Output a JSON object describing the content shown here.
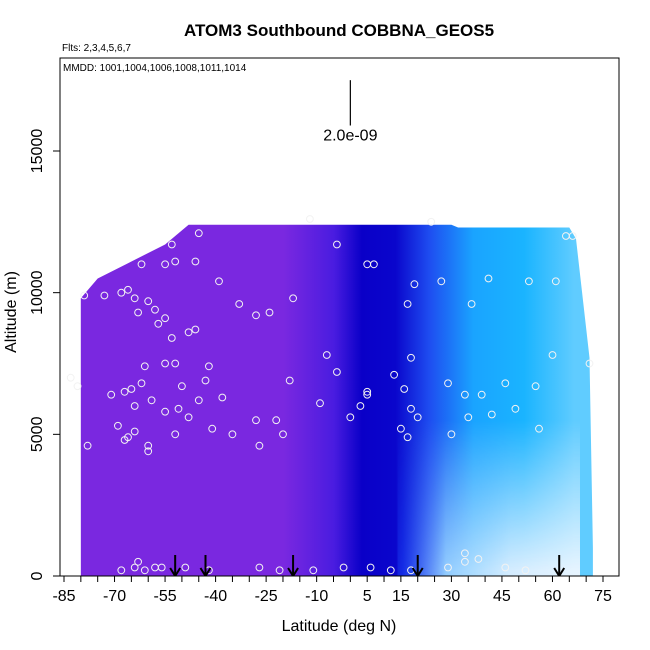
{
  "chart_data": {
    "type": "heatmap",
    "title": "ATOM3 Southbound COBBNA_GEOS5",
    "flights_label": "Flts: 2,3,4,5,6,7",
    "dates_label": "MMDD: 1001,1004,1006,1008,1011,1014",
    "xlabel": "Latitude (deg N)",
    "ylabel": "Altitude (m)",
    "xlim": [
      -85,
      85
    ],
    "ylim": [
      0,
      17500
    ],
    "x_ticks": [
      -85,
      -70,
      -55,
      -40,
      -25,
      -10,
      5,
      15,
      30,
      45,
      60,
      75
    ],
    "y_ticks": [
      0,
      5000,
      10000,
      15000
    ],
    "scale_bar_label": "2.0e-09",
    "scale_bar_x": 0,
    "scale_bar_y_range": [
      15900,
      17500
    ],
    "arrow_latitudes": [
      -52,
      -43,
      -17,
      20,
      62
    ],
    "colors": {
      "violet": "#7a28e0",
      "navy": "#0a00c8",
      "blue": "#1e4cf0",
      "sky": "#1ab4ff",
      "pale": "#d4ecff",
      "marker": "#f2f2f2"
    },
    "altitude_ceiling": [
      {
        "lat": -80,
        "alt": 9800
      },
      {
        "lat": -75,
        "alt": 10500
      },
      {
        "lat": -65,
        "alt": 11100
      },
      {
        "lat": -60,
        "alt": 11400
      },
      {
        "lat": -55,
        "alt": 11700
      },
      {
        "lat": -48,
        "alt": 12400
      },
      {
        "lat": 30,
        "alt": 12400
      },
      {
        "lat": 32,
        "alt": 12300
      },
      {
        "lat": 65,
        "alt": 12300
      },
      {
        "lat": 67,
        "alt": 11900
      },
      {
        "lat": 71,
        "alt": 7700
      },
      {
        "lat": 72,
        "alt": 1000
      }
    ],
    "sample_points": [
      {
        "lat": -79,
        "alt": 9900
      },
      {
        "lat": -73,
        "alt": 9900
      },
      {
        "lat": -68,
        "alt": 10000
      },
      {
        "lat": -66,
        "alt": 10100
      },
      {
        "lat": -64,
        "alt": 9800
      },
      {
        "lat": -60,
        "alt": 9700
      },
      {
        "lat": -58,
        "alt": 9400
      },
      {
        "lat": -55,
        "alt": 9100
      },
      {
        "lat": -63,
        "alt": 9300
      },
      {
        "lat": -57,
        "alt": 8900
      },
      {
        "lat": -53,
        "alt": 8400
      },
      {
        "lat": -48,
        "alt": 8600
      },
      {
        "lat": -46,
        "alt": 8700
      },
      {
        "lat": -62,
        "alt": 11000
      },
      {
        "lat": -55,
        "alt": 11000
      },
      {
        "lat": -52,
        "alt": 11100
      },
      {
        "lat": -46,
        "alt": 11100
      },
      {
        "lat": -53,
        "alt": 11700
      },
      {
        "lat": -45,
        "alt": 12100
      },
      {
        "lat": -39,
        "alt": 10400
      },
      {
        "lat": -33,
        "alt": 9600
      },
      {
        "lat": -28,
        "alt": 9200
      },
      {
        "lat": -24,
        "alt": 9300
      },
      {
        "lat": -17,
        "alt": 9800
      },
      {
        "lat": -4,
        "alt": 11700
      },
      {
        "lat": 5,
        "alt": 11000
      },
      {
        "lat": 7,
        "alt": 11000
      },
      {
        "lat": 17,
        "alt": 9600
      },
      {
        "lat": 19,
        "alt": 10300
      },
      {
        "lat": 27,
        "alt": 10400
      },
      {
        "lat": 36,
        "alt": 9600
      },
      {
        "lat": 41,
        "alt": 10500
      },
      {
        "lat": 53,
        "alt": 10400
      },
      {
        "lat": 61,
        "alt": 10400
      },
      {
        "lat": 64,
        "alt": 12000
      },
      {
        "lat": 66,
        "alt": 12000
      },
      {
        "lat": 24,
        "alt": 12500
      },
      {
        "lat": -12,
        "alt": 12600
      },
      {
        "lat": -83,
        "alt": 7000
      },
      {
        "lat": -81,
        "alt": 6700
      },
      {
        "lat": -78,
        "alt": 4600
      },
      {
        "lat": -71,
        "alt": 6400
      },
      {
        "lat": -67,
        "alt": 6500
      },
      {
        "lat": -65,
        "alt": 6600
      },
      {
        "lat": -61,
        "alt": 7400
      },
      {
        "lat": -59,
        "alt": 6200
      },
      {
        "lat": -55,
        "alt": 7500
      },
      {
        "lat": -52,
        "alt": 7500
      },
      {
        "lat": -62,
        "alt": 6800
      },
      {
        "lat": -64,
        "alt": 6000
      },
      {
        "lat": -50,
        "alt": 6700
      },
      {
        "lat": -45,
        "alt": 6200
      },
      {
        "lat": -42,
        "alt": 7400
      },
      {
        "lat": -43,
        "alt": 6900
      },
      {
        "lat": -38,
        "alt": 6300
      },
      {
        "lat": -69,
        "alt": 5300
      },
      {
        "lat": -66,
        "alt": 4900
      },
      {
        "lat": -67,
        "alt": 4800
      },
      {
        "lat": -64,
        "alt": 5100
      },
      {
        "lat": -60,
        "alt": 4600
      },
      {
        "lat": -60,
        "alt": 4400
      },
      {
        "lat": -55,
        "alt": 5800
      },
      {
        "lat": -51,
        "alt": 5900
      },
      {
        "lat": -48,
        "alt": 5600
      },
      {
        "lat": -52,
        "alt": 5000
      },
      {
        "lat": -41,
        "alt": 5200
      },
      {
        "lat": -35,
        "alt": 5000
      },
      {
        "lat": -28,
        "alt": 5500
      },
      {
        "lat": -22,
        "alt": 5500
      },
      {
        "lat": -20,
        "alt": 5000
      },
      {
        "lat": -27,
        "alt": 4600
      },
      {
        "lat": -18,
        "alt": 6900
      },
      {
        "lat": -7,
        "alt": 7800
      },
      {
        "lat": -9,
        "alt": 6100
      },
      {
        "lat": -4,
        "alt": 7200
      },
      {
        "lat": 0,
        "alt": 5600
      },
      {
        "lat": 3,
        "alt": 6000
      },
      {
        "lat": 5,
        "alt": 6500
      },
      {
        "lat": 5,
        "alt": 6400
      },
      {
        "lat": 13,
        "alt": 7100
      },
      {
        "lat": 16,
        "alt": 6600
      },
      {
        "lat": 18,
        "alt": 7700
      },
      {
        "lat": 18,
        "alt": 5900
      },
      {
        "lat": 20,
        "alt": 5600
      },
      {
        "lat": 15,
        "alt": 5200
      },
      {
        "lat": 17,
        "alt": 4900
      },
      {
        "lat": 29,
        "alt": 6800
      },
      {
        "lat": 34,
        "alt": 6400
      },
      {
        "lat": 35,
        "alt": 5600
      },
      {
        "lat": 39,
        "alt": 6400
      },
      {
        "lat": 42,
        "alt": 5700
      },
      {
        "lat": 46,
        "alt": 6800
      },
      {
        "lat": 49,
        "alt": 5900
      },
      {
        "lat": 55,
        "alt": 6700
      },
      {
        "lat": 56,
        "alt": 5200
      },
      {
        "lat": 60,
        "alt": 7800
      },
      {
        "lat": 30,
        "alt": 5000
      },
      {
        "lat": 71,
        "alt": 7500
      },
      {
        "lat": -68,
        "alt": 200
      },
      {
        "lat": -64,
        "alt": 300
      },
      {
        "lat": -63,
        "alt": 500
      },
      {
        "lat": -61,
        "alt": 200
      },
      {
        "lat": -58,
        "alt": 300
      },
      {
        "lat": -56,
        "alt": 300
      },
      {
        "lat": -49,
        "alt": 300
      },
      {
        "lat": -42,
        "alt": 200
      },
      {
        "lat": -27,
        "alt": 300
      },
      {
        "lat": -21,
        "alt": 200
      },
      {
        "lat": -11,
        "alt": 200
      },
      {
        "lat": -2,
        "alt": 300
      },
      {
        "lat": 6,
        "alt": 300
      },
      {
        "lat": 12,
        "alt": 200
      },
      {
        "lat": 18,
        "alt": 200
      },
      {
        "lat": 29,
        "alt": 300
      },
      {
        "lat": 34,
        "alt": 800
      },
      {
        "lat": 34,
        "alt": 500
      },
      {
        "lat": 38,
        "alt": 600
      },
      {
        "lat": 46,
        "alt": 300
      },
      {
        "lat": 52,
        "alt": 200
      }
    ]
  }
}
